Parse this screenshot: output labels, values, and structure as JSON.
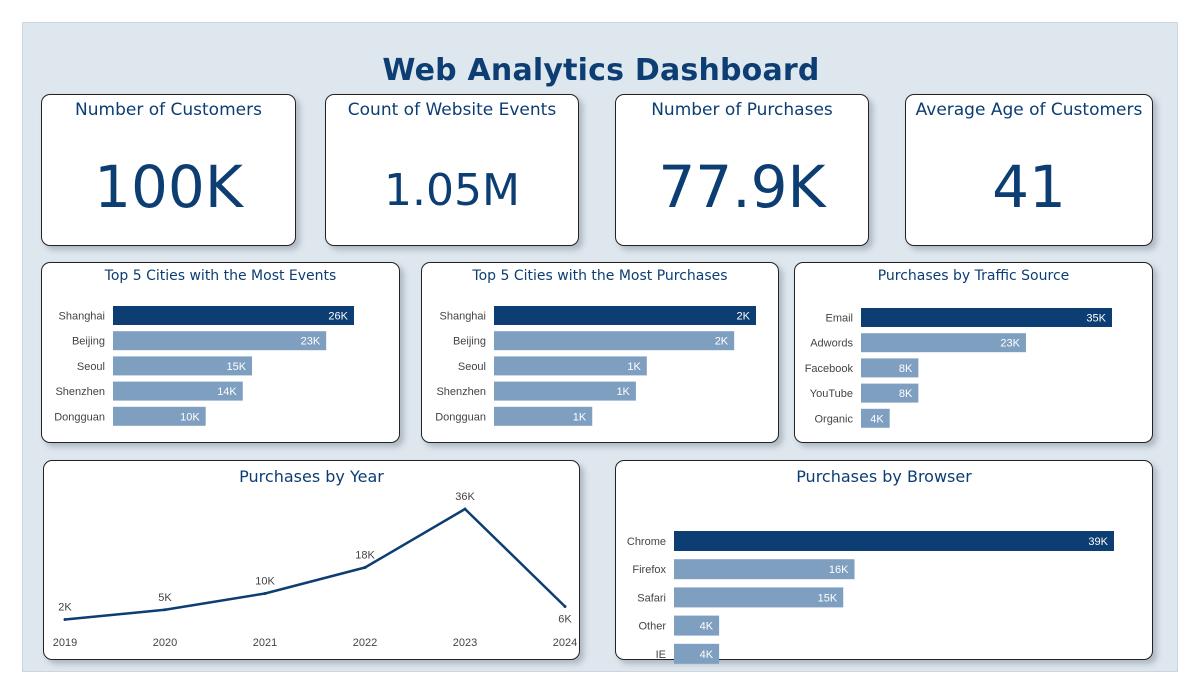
{
  "page": {
    "title": "Web Analytics Dashboard"
  },
  "kpis": [
    {
      "label": "Number of Customers",
      "value": "100K"
    },
    {
      "label": "Count of Website Events",
      "value": "1.05M"
    },
    {
      "label": "Number of Purchases",
      "value": "77.9K"
    },
    {
      "label": "Average Age of Customers",
      "value": "41"
    }
  ],
  "colors": {
    "primary": "#0c3d73",
    "secondary": "#7f9fc1",
    "background": "#dee6ee",
    "card": "#ffffff"
  },
  "chart_data": [
    {
      "type": "bar",
      "orientation": "horizontal",
      "title": "Top 5 Cities with the Most Events",
      "categories": [
        "Shanghai",
        "Beijing",
        "Seoul",
        "Shenzhen",
        "Dongguan"
      ],
      "values": [
        26,
        23,
        15,
        14,
        10
      ],
      "labels": [
        "26K",
        "23K",
        "15K",
        "14K",
        "10K"
      ],
      "unit": "K",
      "grid": false,
      "legend": "none"
    },
    {
      "type": "bar",
      "orientation": "horizontal",
      "title": "Top 5 Cities with the Most Purchases",
      "categories": [
        "Shanghai",
        "Beijing",
        "Seoul",
        "Shenzhen",
        "Dongguan"
      ],
      "values": [
        2.4,
        2.2,
        1.4,
        1.3,
        0.9
      ],
      "labels": [
        "2K",
        "2K",
        "1K",
        "1K",
        "1K"
      ],
      "unit": "K",
      "grid": false,
      "legend": "none"
    },
    {
      "type": "bar",
      "orientation": "horizontal",
      "title": "Purchases by Traffic Source",
      "categories": [
        "Email",
        "Adwords",
        "Facebook",
        "YouTube",
        "Organic"
      ],
      "values": [
        35,
        23,
        8,
        8,
        4
      ],
      "labels": [
        "35K",
        "23K",
        "8K",
        "8K",
        "4K"
      ],
      "unit": "K",
      "grid": false,
      "legend": "none"
    },
    {
      "type": "line",
      "title": "Purchases by Year",
      "x": [
        "2019",
        "2020",
        "2021",
        "2022",
        "2023",
        "2024"
      ],
      "values": [
        2,
        5,
        10,
        18,
        36,
        6
      ],
      "labels": [
        "2K",
        "5K",
        "10K",
        "18K",
        "36K",
        "6K"
      ],
      "unit": "K",
      "grid": false,
      "legend": "none"
    },
    {
      "type": "bar",
      "orientation": "horizontal",
      "title": "Purchases by Browser",
      "categories": [
        "Chrome",
        "Firefox",
        "Safari",
        "Other",
        "IE"
      ],
      "values": [
        39,
        16,
        15,
        4,
        4
      ],
      "labels": [
        "39K",
        "16K",
        "15K",
        "4K",
        "4K"
      ],
      "unit": "K",
      "grid": false,
      "legend": "none"
    }
  ]
}
